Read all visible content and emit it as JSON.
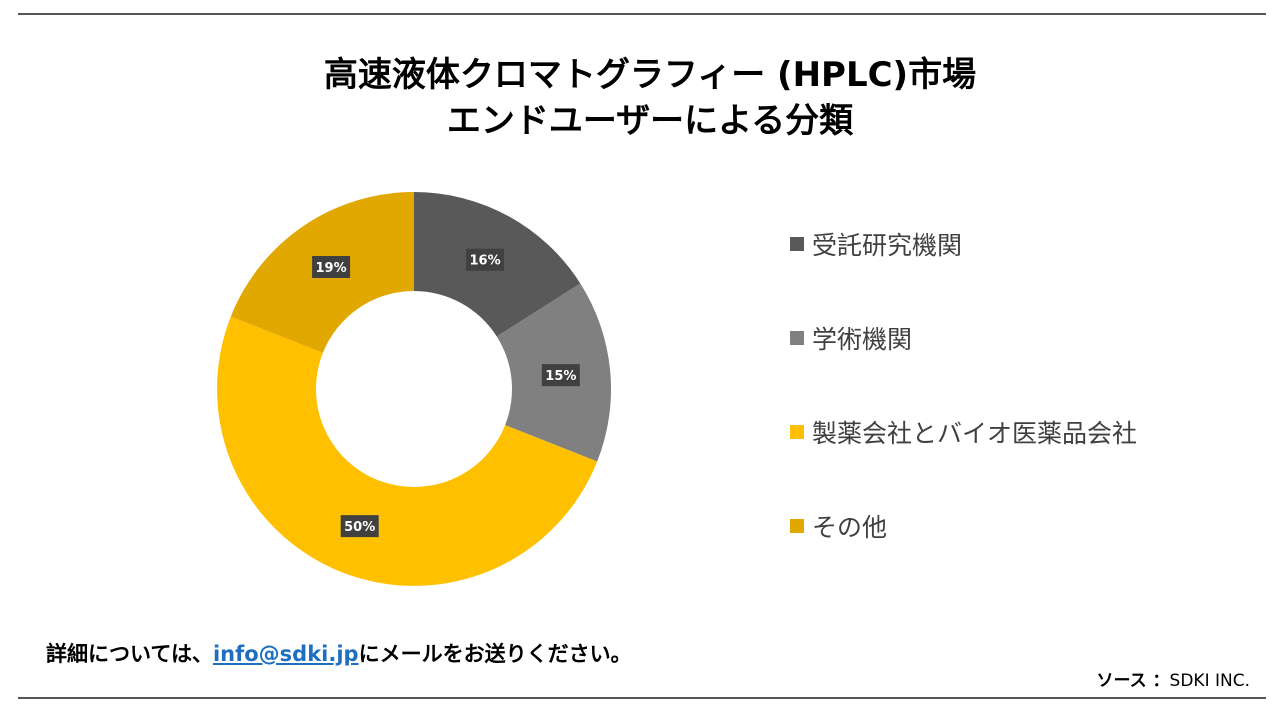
{
  "title_line1": "高速液体クロマトグラフィー (HPLC)市場",
  "title_line2": "エンドユーザーによる分類",
  "chart_data": {
    "type": "pie",
    "donut": true,
    "categories": [
      "受託研究機関",
      "学術機関",
      "製薬会社とバイオ医薬品会社",
      "その他"
    ],
    "values": [
      16,
      15,
      50,
      19
    ],
    "data_labels": [
      "16%",
      "15%",
      "50%",
      "19%"
    ],
    "colors": [
      "#595959",
      "#808080",
      "#FFC000",
      "#E0A800"
    ],
    "legend_position": "right"
  },
  "footer": {
    "text_before": "詳細については、",
    "email": "info@sdki.jp",
    "text_after": "にメールをお送りください。"
  },
  "source": {
    "label": "ソース ：",
    "value": "SDKI INC."
  }
}
